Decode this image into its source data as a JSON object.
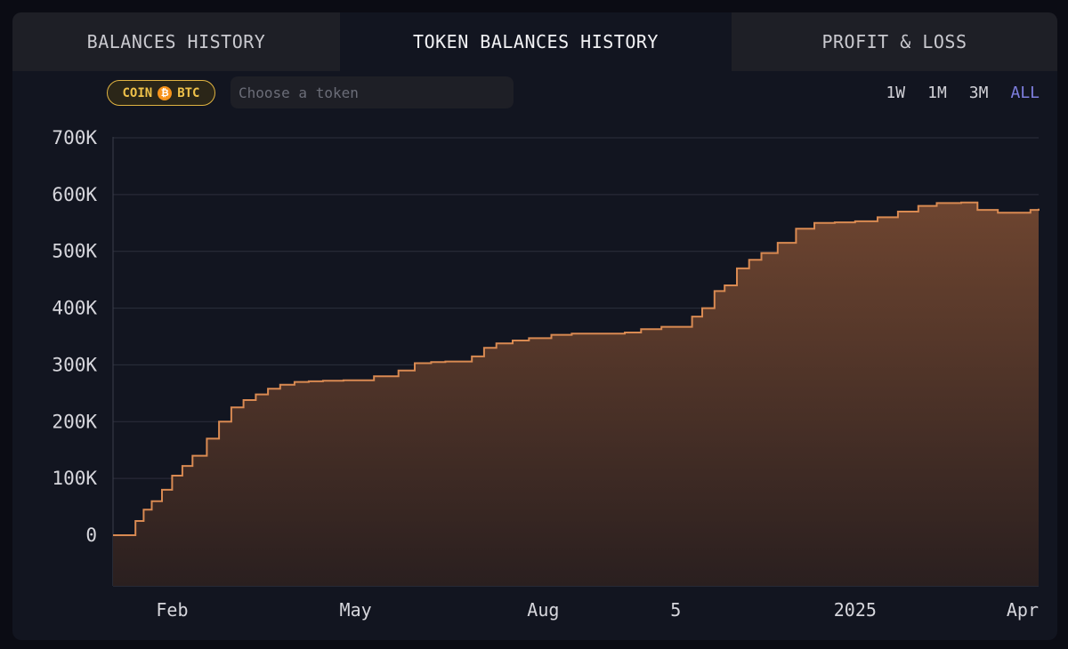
{
  "tabs": [
    {
      "label": "BALANCES HISTORY"
    },
    {
      "label": "TOKEN BALANCES HISTORY"
    },
    {
      "label": "PROFIT & LOSS"
    }
  ],
  "active_tab": 1,
  "filter": {
    "coin_label": "COIN",
    "coin_symbol": "BTC",
    "coin_icon": "bitcoin-icon",
    "token_placeholder": "Choose a token",
    "token_value": ""
  },
  "ranges": [
    "1W",
    "1M",
    "3M",
    "ALL"
  ],
  "active_range": "ALL",
  "colors": {
    "accent_line": "#d98a52",
    "fill_top": "#6e4530",
    "fill_bottom": "#2a1f1f",
    "range_active": "#7f7fe0",
    "coin_border": "#e0b341"
  },
  "chart_data": {
    "type": "area",
    "title": "",
    "xlabel": "",
    "ylabel": "",
    "ylim": [
      -90000,
      700000
    ],
    "xlim": [
      "2024-01-03",
      "2025-04-01"
    ],
    "y_ticks": [
      0,
      100000,
      200000,
      300000,
      400000,
      500000,
      600000,
      700000
    ],
    "y_tick_labels": [
      "0",
      "100K",
      "200K",
      "300K",
      "400K",
      "500K",
      "600K",
      "700K"
    ],
    "x_ticks": [
      "2024-02-01",
      "2024-05-01",
      "2024-08-01",
      "2024-10-05",
      "2025-01-01",
      "2025-04-01"
    ],
    "x_tick_labels": [
      "Feb",
      "May",
      "Aug",
      "5",
      "2025",
      "Apr"
    ],
    "grid": true,
    "legend": "none",
    "series": [
      {
        "x": [
          "2024-01-03",
          "2024-01-10",
          "2024-01-14",
          "2024-01-18",
          "2024-01-22",
          "2024-01-27",
          "2024-02-01",
          "2024-02-06",
          "2024-02-11",
          "2024-02-18",
          "2024-02-24",
          "2024-03-01",
          "2024-03-07",
          "2024-03-13",
          "2024-03-19",
          "2024-03-25",
          "2024-04-01",
          "2024-04-08",
          "2024-04-15",
          "2024-04-25",
          "2024-05-10",
          "2024-05-22",
          "2024-05-30",
          "2024-06-07",
          "2024-06-14",
          "2024-06-27",
          "2024-07-03",
          "2024-07-09",
          "2024-07-17",
          "2024-07-25",
          "2024-08-05",
          "2024-08-15",
          "2024-08-30",
          "2024-09-10",
          "2024-09-18",
          "2024-09-28",
          "2024-10-05",
          "2024-10-13",
          "2024-10-18",
          "2024-10-24",
          "2024-10-29",
          "2024-11-04",
          "2024-11-10",
          "2024-11-16",
          "2024-11-24",
          "2024-12-03",
          "2024-12-12",
          "2024-12-22",
          "2025-01-01",
          "2025-01-12",
          "2025-01-22",
          "2025-02-01",
          "2025-02-10",
          "2025-02-22",
          "2025-03-02",
          "2025-03-12",
          "2025-03-20",
          "2025-03-28",
          "2025-04-01"
        ],
        "values": [
          0,
          0,
          25000,
          45000,
          60000,
          80000,
          105000,
          122000,
          140000,
          170000,
          200000,
          225000,
          238000,
          248000,
          258000,
          265000,
          270000,
          271000,
          272000,
          273000,
          280000,
          290000,
          303000,
          305000,
          306000,
          315000,
          330000,
          338000,
          343000,
          347000,
          353000,
          355000,
          355000,
          357000,
          363000,
          367000,
          367000,
          385000,
          400000,
          430000,
          440000,
          470000,
          485000,
          497000,
          515000,
          540000,
          550000,
          551000,
          553000,
          560000,
          570000,
          580000,
          585000,
          586000,
          573000,
          568000,
          568000,
          573000,
          575000
        ]
      }
    ]
  }
}
